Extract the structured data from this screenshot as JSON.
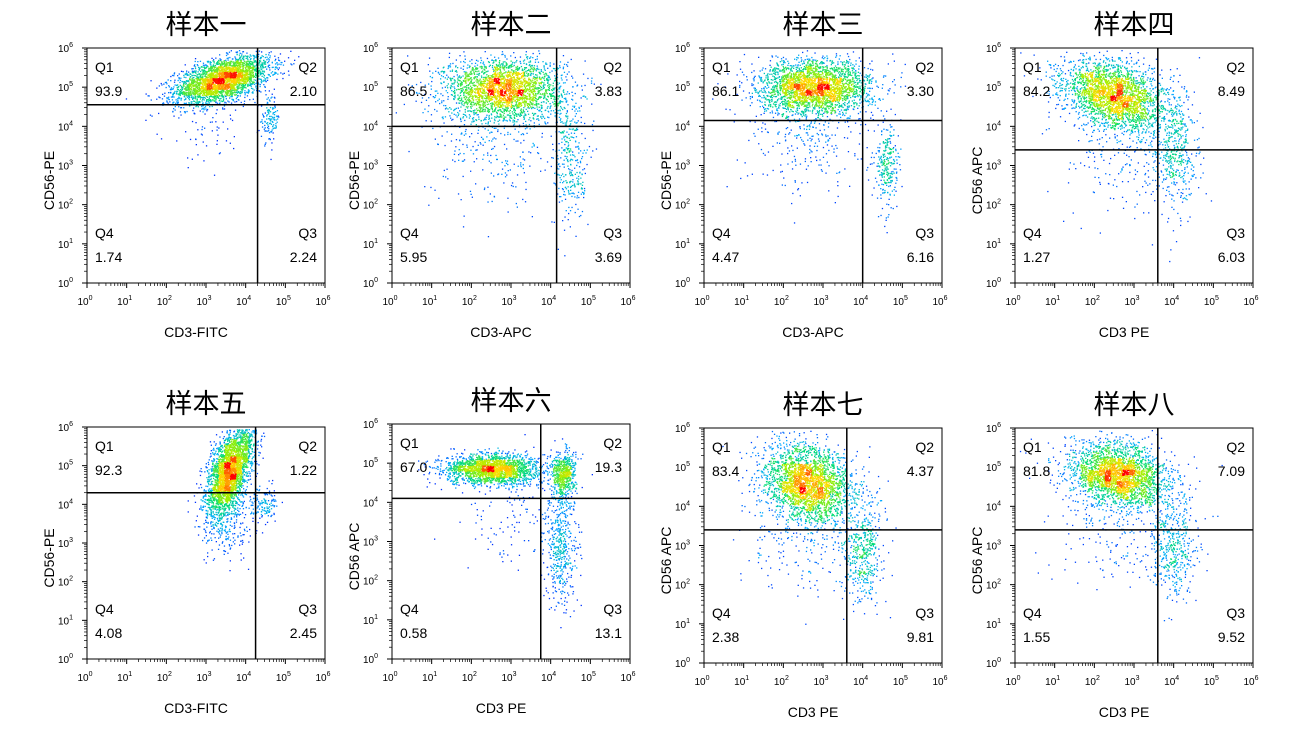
{
  "chart_data": [
    {
      "type": "scatter",
      "title": "样本一",
      "xlabel": "CD3-FITC",
      "ylabel": "CD56-PE",
      "xlim": [
        0,
        6
      ],
      "ylim": [
        0,
        6
      ],
      "scale": "log10",
      "tick_labels": [
        "10^0",
        "10^1",
        "10^2",
        "10^3",
        "10^4",
        "10^5",
        "10^6"
      ],
      "gate": {
        "x": 4.3,
        "y": 4.55
      },
      "quadrants": [
        {
          "name": "Q1",
          "value": "93.9"
        },
        {
          "name": "Q2",
          "value": "2.10"
        },
        {
          "name": "Q4",
          "value": "1.74"
        },
        {
          "name": "Q3",
          "value": "2.24"
        }
      ],
      "populations": [
        {
          "x": 3.4,
          "y": 5.2,
          "sx": 0.6,
          "sy": 0.3,
          "rho": 0.5,
          "w": 0.94
        },
        {
          "x": 4.6,
          "y": 4.2,
          "sx": 0.12,
          "sy": 0.3,
          "rho": 0,
          "w": 0.04
        },
        {
          "x": 3.0,
          "y": 4.0,
          "sx": 0.5,
          "sy": 0.5,
          "rho": 0.2,
          "w": 0.02
        }
      ]
    },
    {
      "type": "scatter",
      "title": "样本二",
      "xlabel": "CD3-APC",
      "ylabel": "CD56-PE",
      "xlim": [
        0,
        6
      ],
      "ylim": [
        0,
        6
      ],
      "scale": "log10",
      "tick_labels": [
        "10^0",
        "10^1",
        "10^2",
        "10^3",
        "10^4",
        "10^5",
        "10^6"
      ],
      "gate": {
        "x": 4.15,
        "y": 4.0
      },
      "quadrants": [
        {
          "name": "Q1",
          "value": "86.5"
        },
        {
          "name": "Q2",
          "value": "3.83"
        },
        {
          "name": "Q4",
          "value": "5.95"
        },
        {
          "name": "Q3",
          "value": "3.69"
        }
      ],
      "populations": [
        {
          "x": 2.8,
          "y": 4.95,
          "sx": 0.75,
          "sy": 0.4,
          "rho": 0,
          "w": 0.82
        },
        {
          "x": 4.5,
          "y": 3.2,
          "sx": 0.22,
          "sy": 0.9,
          "rho": 0,
          "w": 0.1
        },
        {
          "x": 2.5,
          "y": 3.5,
          "sx": 0.8,
          "sy": 0.8,
          "rho": 0,
          "w": 0.08
        }
      ]
    },
    {
      "type": "scatter",
      "title": "样本三",
      "xlabel": "CD3-APC",
      "ylabel": "CD56-PE",
      "xlim": [
        0,
        6
      ],
      "ylim": [
        0,
        6
      ],
      "scale": "log10",
      "tick_labels": [
        "10^0",
        "10^1",
        "10^2",
        "10^3",
        "10^4",
        "10^5",
        "10^6"
      ],
      "gate": {
        "x": 4.0,
        "y": 4.15
      },
      "quadrants": [
        {
          "name": "Q1",
          "value": "86.1"
        },
        {
          "name": "Q2",
          "value": "3.30"
        },
        {
          "name": "Q4",
          "value": "4.47"
        },
        {
          "name": "Q3",
          "value": "6.16"
        }
      ],
      "populations": [
        {
          "x": 2.8,
          "y": 5.0,
          "sx": 0.7,
          "sy": 0.35,
          "rho": 0,
          "w": 0.84
        },
        {
          "x": 4.6,
          "y": 3.0,
          "sx": 0.15,
          "sy": 0.55,
          "rho": 0,
          "w": 0.08
        },
        {
          "x": 2.6,
          "y": 3.7,
          "sx": 0.8,
          "sy": 0.7,
          "rho": 0,
          "w": 0.08
        }
      ]
    },
    {
      "type": "scatter",
      "title": "样本四",
      "xlabel": "CD3 PE",
      "ylabel": "CD56 APC",
      "xlim": [
        0,
        6
      ],
      "ylim": [
        0,
        6
      ],
      "scale": "log10",
      "tick_labels": [
        "10^0",
        "10^1",
        "10^2",
        "10^3",
        "10^4",
        "10^5",
        "10^6"
      ],
      "gate": {
        "x": 3.6,
        "y": 3.4
      },
      "quadrants": [
        {
          "name": "Q1",
          "value": "84.2"
        },
        {
          "name": "Q2",
          "value": "8.49"
        },
        {
          "name": "Q4",
          "value": "1.27"
        },
        {
          "name": "Q3",
          "value": "6.03"
        }
      ],
      "populations": [
        {
          "x": 2.5,
          "y": 4.8,
          "sx": 0.65,
          "sy": 0.45,
          "rho": -0.3,
          "w": 0.8
        },
        {
          "x": 4.0,
          "y": 3.3,
          "sx": 0.3,
          "sy": 0.8,
          "rho": 0,
          "w": 0.14
        },
        {
          "x": 2.8,
          "y": 3.2,
          "sx": 0.8,
          "sy": 0.7,
          "rho": 0,
          "w": 0.06
        }
      ]
    },
    {
      "type": "scatter",
      "title": "样本五",
      "xlabel": "CD3-FITC",
      "ylabel": "CD56-PE",
      "xlim": [
        0,
        6
      ],
      "ylim": [
        0,
        6
      ],
      "scale": "log10",
      "tick_labels": [
        "10^0",
        "10^1",
        "10^2",
        "10^3",
        "10^4",
        "10^5",
        "10^6"
      ],
      "gate": {
        "x": 4.25,
        "y": 4.3
      },
      "quadrants": [
        {
          "name": "Q1",
          "value": "92.3"
        },
        {
          "name": "Q2",
          "value": "1.22"
        },
        {
          "name": "Q4",
          "value": "4.08"
        },
        {
          "name": "Q3",
          "value": "2.45"
        }
      ],
      "populations": [
        {
          "x": 3.6,
          "y": 4.9,
          "sx": 0.3,
          "sy": 0.6,
          "rho": 0.6,
          "w": 0.88
        },
        {
          "x": 3.5,
          "y": 3.6,
          "sx": 0.3,
          "sy": 0.5,
          "rho": 0,
          "w": 0.08
        },
        {
          "x": 4.4,
          "y": 4.0,
          "sx": 0.2,
          "sy": 0.25,
          "rho": 0,
          "w": 0.04
        }
      ]
    },
    {
      "type": "scatter",
      "title": "样本六",
      "xlabel": "CD3 PE",
      "ylabel": "CD56 APC",
      "xlim": [
        0,
        6
      ],
      "ylim": [
        0,
        6
      ],
      "scale": "log10",
      "tick_labels": [
        "10^0",
        "10^1",
        "10^2",
        "10^3",
        "10^4",
        "10^5",
        "10^6"
      ],
      "gate": {
        "x": 3.75,
        "y": 4.1
      },
      "quadrants": [
        {
          "name": "Q1",
          "value": "67.0"
        },
        {
          "name": "Q2",
          "value": "19.3"
        },
        {
          "name": "Q4",
          "value": "0.58"
        },
        {
          "name": "Q3",
          "value": "13.1"
        }
      ],
      "populations": [
        {
          "x": 2.5,
          "y": 4.85,
          "sx": 0.6,
          "sy": 0.2,
          "rho": 0,
          "w": 0.64
        },
        {
          "x": 4.3,
          "y": 4.7,
          "sx": 0.15,
          "sy": 0.3,
          "rho": 0,
          "w": 0.18
        },
        {
          "x": 4.25,
          "y": 2.9,
          "sx": 0.2,
          "sy": 0.8,
          "rho": 0,
          "w": 0.15
        },
        {
          "x": 3.0,
          "y": 3.5,
          "sx": 0.6,
          "sy": 0.6,
          "rho": 0,
          "w": 0.03
        }
      ]
    },
    {
      "type": "scatter",
      "title": "样本七",
      "xlabel": "CD3 PE",
      "ylabel": "CD56 APC",
      "xlim": [
        0,
        6
      ],
      "ylim": [
        0,
        6
      ],
      "scale": "log10",
      "tick_labels": [
        "10^0",
        "10^1",
        "10^2",
        "10^3",
        "10^4",
        "10^5",
        "10^6"
      ],
      "gate": {
        "x": 3.6,
        "y": 3.4
      },
      "quadrants": [
        {
          "name": "Q1",
          "value": "83.4"
        },
        {
          "name": "Q2",
          "value": "4.37"
        },
        {
          "name": "Q4",
          "value": "2.38"
        },
        {
          "name": "Q3",
          "value": "9.81"
        }
      ],
      "populations": [
        {
          "x": 2.6,
          "y": 4.6,
          "sx": 0.55,
          "sy": 0.5,
          "rho": -0.2,
          "w": 0.8
        },
        {
          "x": 4.0,
          "y": 2.9,
          "sx": 0.25,
          "sy": 0.7,
          "rho": 0,
          "w": 0.14
        },
        {
          "x": 2.5,
          "y": 3.1,
          "sx": 0.8,
          "sy": 0.7,
          "rho": 0,
          "w": 0.06
        }
      ]
    },
    {
      "type": "scatter",
      "title": "样本八",
      "xlabel": "CD3 PE",
      "ylabel": "CD56 APC",
      "xlim": [
        0,
        6
      ],
      "ylim": [
        0,
        6
      ],
      "scale": "log10",
      "tick_labels": [
        "10^0",
        "10^1",
        "10^2",
        "10^3",
        "10^4",
        "10^5",
        "10^6"
      ],
      "gate": {
        "x": 3.6,
        "y": 3.4
      },
      "quadrants": [
        {
          "name": "Q1",
          "value": "81.8"
        },
        {
          "name": "Q2",
          "value": "7.09"
        },
        {
          "name": "Q4",
          "value": "1.55"
        },
        {
          "name": "Q3",
          "value": "9.52"
        }
      ],
      "populations": [
        {
          "x": 2.6,
          "y": 4.8,
          "sx": 0.6,
          "sy": 0.4,
          "rho": -0.2,
          "w": 0.8
        },
        {
          "x": 4.0,
          "y": 3.0,
          "sx": 0.3,
          "sy": 0.75,
          "rho": 0,
          "w": 0.14
        },
        {
          "x": 2.6,
          "y": 3.4,
          "sx": 0.8,
          "sy": 0.7,
          "rho": 0,
          "w": 0.06
        }
      ]
    }
  ]
}
